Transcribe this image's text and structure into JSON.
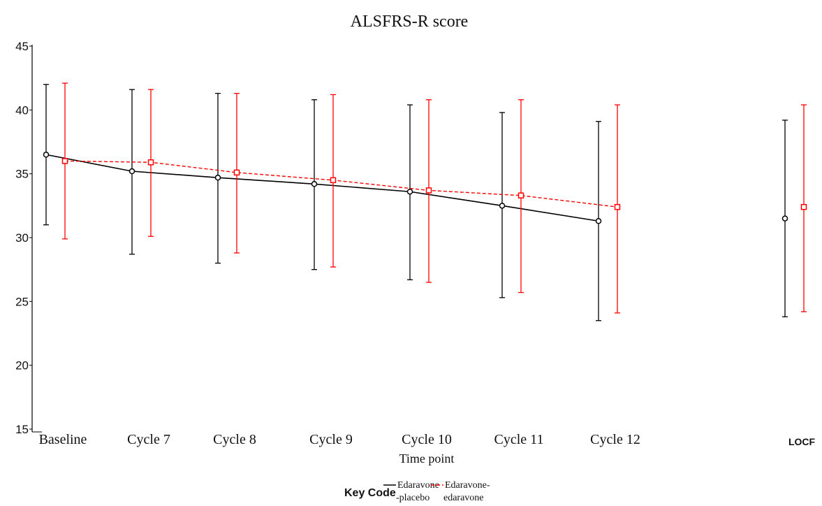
{
  "chart_data": {
    "type": "line",
    "title": "ALSFRS-R score",
    "xlabel": "Time point",
    "ylabel": "",
    "ylim": [
      15,
      45
    ],
    "yticks": [
      15,
      20,
      25,
      30,
      35,
      40,
      45
    ],
    "categories": [
      "Baseline",
      "Cycle 7",
      "Cycle 8",
      "Cycle 9",
      "Cycle 10",
      "Cycle 11",
      "Cycle 12",
      "LOCF"
    ],
    "grid": false,
    "legend": {
      "title": "Key Code",
      "placement": "bottom-center"
    },
    "series": [
      {
        "name": "Edaravone-placebo",
        "name_lines": [
          "Edaravone",
          "-placebo"
        ],
        "color": "#000000",
        "dash": "solid",
        "marker": "circle",
        "connect_through": "Cycle 12",
        "values": [
          36.5,
          35.2,
          34.7,
          34.2,
          33.6,
          32.5,
          31.3,
          31.5
        ],
        "lower": [
          31.0,
          28.7,
          28.0,
          27.5,
          26.7,
          25.3,
          23.5,
          23.8
        ],
        "upper": [
          42.0,
          41.6,
          41.3,
          40.8,
          40.4,
          39.8,
          39.1,
          39.2
        ]
      },
      {
        "name": "Edaravone-edaravone",
        "name_lines": [
          "Edaravone-",
          "edaravone"
        ],
        "color": "#ff0000",
        "dash": "dashed",
        "marker": "square",
        "connect_through": "Cycle 12",
        "values": [
          36.0,
          35.9,
          35.1,
          34.5,
          33.7,
          33.3,
          32.4,
          32.4
        ],
        "lower": [
          29.9,
          30.1,
          28.8,
          27.7,
          26.5,
          25.7,
          24.1,
          24.2
        ],
        "upper": [
          42.1,
          41.6,
          41.3,
          41.2,
          40.8,
          40.8,
          40.4,
          40.4
        ]
      }
    ]
  }
}
